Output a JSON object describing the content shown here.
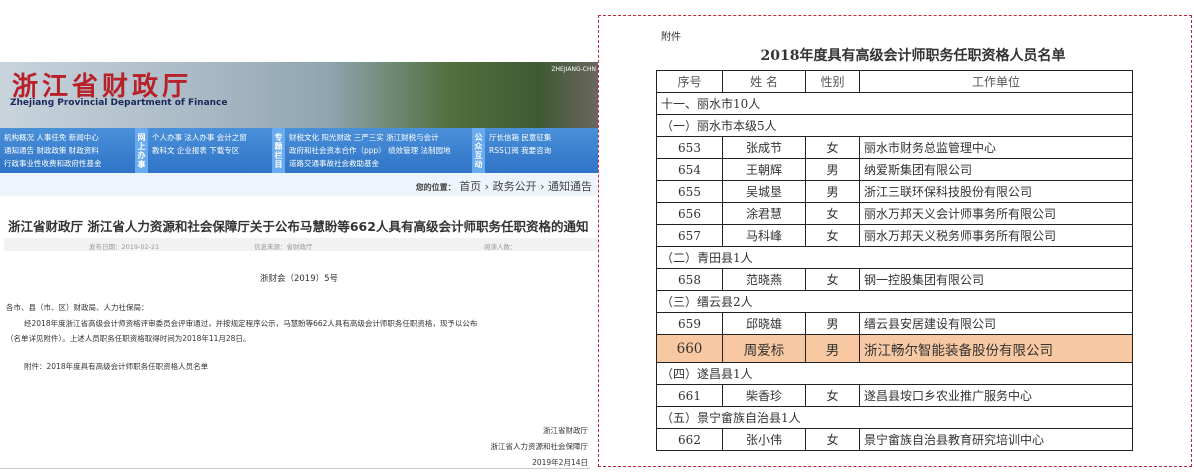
{
  "site": {
    "logo": "浙江省财政厅",
    "logo_en": "Zhejiang Provincial Department of Finance",
    "corner": "ZHEJIANG-CHN"
  },
  "nav": {
    "g1": [
      "机构概况  人事任免  新闻中心",
      "通知通告  财政政策  财政资料",
      "行政事业性收费和政府性基金"
    ],
    "v1": "网上办事",
    "g2": [
      "个人办事  法人办事  会计之窗",
      "教科文  企业报表  下载专区"
    ],
    "v2": "专题栏目",
    "g3": [
      "财税文化  阳光财政  三严三实  浙江财税与会计",
      "政府和社会资本合作（ppp）  绩效管理  法制园地",
      "道路交通事故社会救助基金"
    ],
    "v3": "公众互动",
    "g4": [
      "厅长信箱  民意征集",
      "RSS订阅  我要咨询"
    ]
  },
  "breadcrumb": {
    "label": "您的位置：",
    "items": [
      "首页",
      "政务公开",
      "通知通告"
    ],
    "sep": " › "
  },
  "article": {
    "title": "浙江省财政厅 浙江省人力资源和社会保障厅关于公布马慧盼等662人具有高级会计师职务任职资格的通知",
    "date": "发布日期：2019-02-21",
    "source": "信息来源：省财政厅",
    "reads": "阅读人数：",
    "docno": "浙财会（2019）5号",
    "salutation": "各市、县（市、区）财政局、人力社保局：",
    "para1": "经2018年度浙江省高级会计师资格评审委员会评审通过，并按规定程序公示，马慧盼等662人具有高级会计师职务任职资格，现予以公布",
    "para2": "（名单详见附件）。上述人员职务任职资格取得时间为2018年11月28日。",
    "attachment": "附件：2018年度具有高级会计师职务任职资格人员名单",
    "sign1": "浙江省财政厅",
    "sign2": "浙江省人力资源和社会保障厅",
    "sign_date": "2019年2月14日"
  },
  "list": {
    "att": "附件",
    "title": "2018年度具有高级会计师职务任职资格人员名单",
    "headers": [
      "序号",
      "姓 名",
      "性别",
      "工作单位"
    ],
    "highlight_color": "#f7c8a2",
    "rows": [
      {
        "section": "十一、丽水市10人"
      },
      {
        "section": "（一）丽水市本级5人"
      },
      {
        "no": "653",
        "name": "张成节",
        "sex": "女",
        "unit": "丽水市财务总监管理中心"
      },
      {
        "no": "654",
        "name": "王朝辉",
        "sex": "男",
        "unit": "纳爱斯集团有限公司"
      },
      {
        "no": "655",
        "name": "吴城垦",
        "sex": "男",
        "unit": "浙江三联环保科技股份有限公司"
      },
      {
        "no": "656",
        "name": "涂君慧",
        "sex": "女",
        "unit": "丽水万邦天义会计师事务所有限公司"
      },
      {
        "no": "657",
        "name": "马科峰",
        "sex": "女",
        "unit": "丽水万邦天义税务师事务所有限公司"
      },
      {
        "section": "（二）青田县1人"
      },
      {
        "no": "658",
        "name": "范晓燕",
        "sex": "女",
        "unit": "钢一控股集团有限公司"
      },
      {
        "section": "（三）缙云县2人"
      },
      {
        "no": "659",
        "name": "邱晓雄",
        "sex": "男",
        "unit": "缙云县安居建设有限公司"
      },
      {
        "no": "660",
        "name": "周爱标",
        "sex": "男",
        "unit": "浙江畅尔智能装备股份有限公司",
        "highlight": true
      },
      {
        "section": "（四）遂昌县1人"
      },
      {
        "no": "661",
        "name": "柴香珍",
        "sex": "女",
        "unit": "遂昌县垵口乡农业推广服务中心"
      },
      {
        "section": "（五）景宁畲族自治县1人"
      },
      {
        "no": "662",
        "name": "张小伟",
        "sex": "女",
        "unit": "景宁畲族自治县教育研究培训中心"
      }
    ]
  }
}
